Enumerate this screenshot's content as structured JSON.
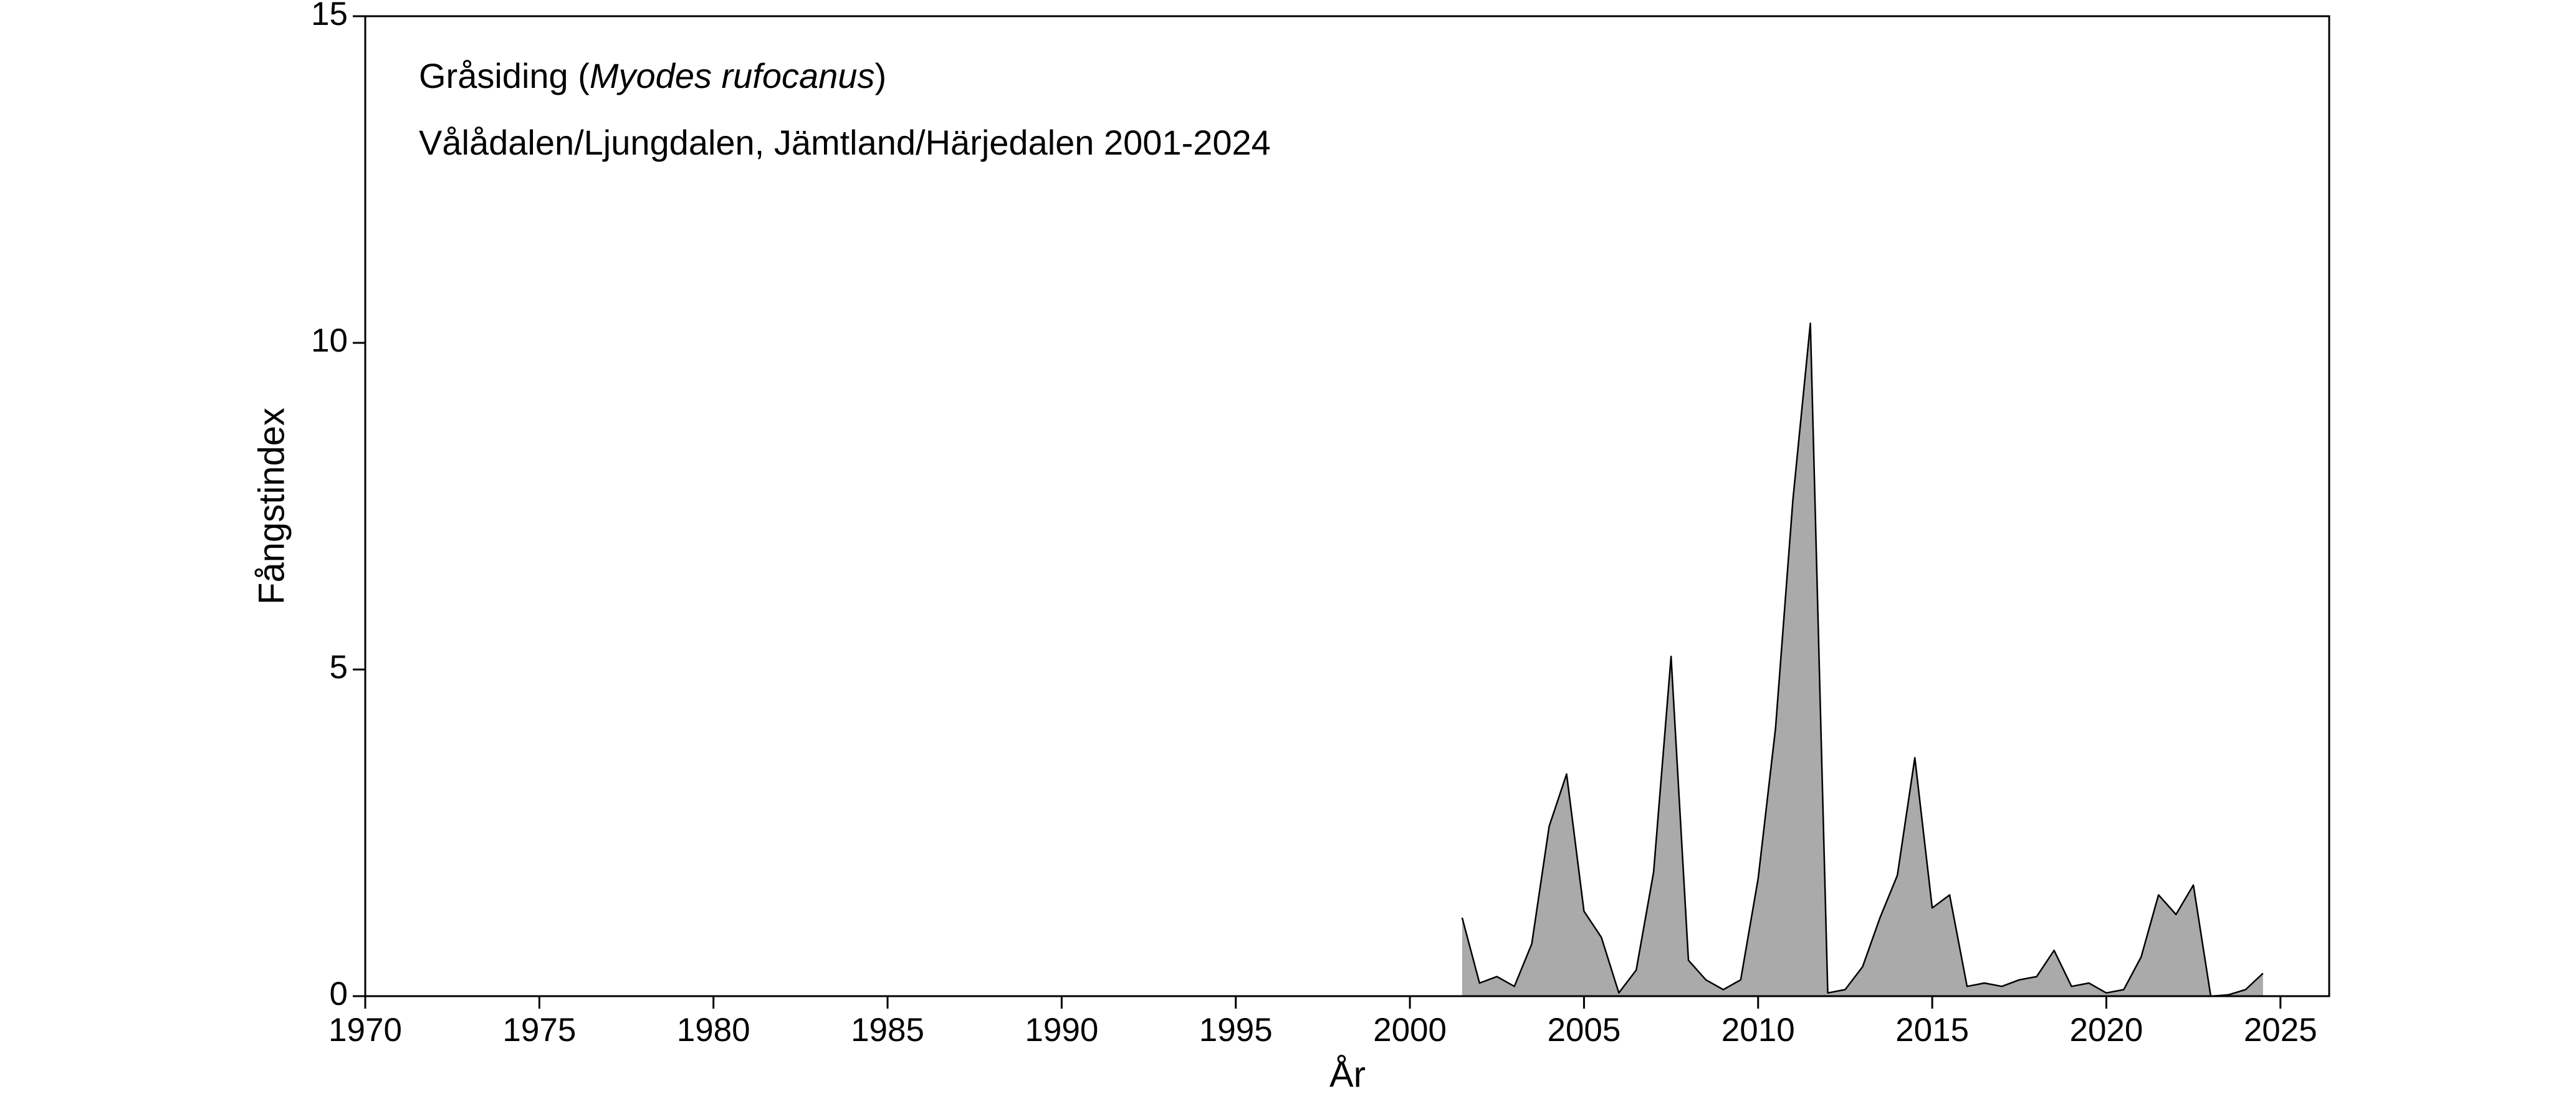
{
  "chart_data": {
    "type": "area",
    "title_parts": [
      "Gråsiding (",
      "Myodes rufocanus",
      ")"
    ],
    "subtitle": "Vålådalen/Ljungdalen, Jämtland/Härjedalen 2001-2024",
    "xlabel": "År",
    "ylabel": "Fångstindex",
    "x": [
      2001.5,
      2002,
      2002.5,
      2003,
      2003.5,
      2004,
      2004.5,
      2005,
      2005.5,
      2006,
      2006.5,
      2007,
      2007.5,
      2008,
      2008.5,
      2009,
      2009.5,
      2010,
      2010.5,
      2011,
      2011.5,
      2012,
      2012.5,
      2013,
      2013.5,
      2014,
      2014.5,
      2015,
      2015.5,
      2016,
      2016.5,
      2017,
      2017.5,
      2018,
      2018.5,
      2019,
      2019.5,
      2020,
      2020.5,
      2021,
      2021.5,
      2022,
      2022.5,
      2023,
      2023.5,
      2024,
      2024.5
    ],
    "values": [
      1.2,
      0.2,
      0.3,
      0.15,
      0.8,
      2.6,
      3.4,
      1.3,
      0.9,
      0.05,
      0.4,
      1.9,
      5.2,
      0.55,
      0.25,
      0.1,
      0.25,
      1.8,
      4.1,
      7.6,
      10.3,
      0.05,
      0.1,
      0.45,
      1.2,
      1.85,
      3.65,
      1.35,
      1.55,
      0.15,
      0.2,
      0.15,
      0.25,
      0.3,
      0.7,
      0.15,
      0.2,
      0.05,
      0.1,
      0.6,
      1.55,
      1.25,
      1.7,
      0,
      0.02,
      0.1,
      0.35
    ],
    "color": "#aaaaaa",
    "xlim": [
      1970,
      2026.4
    ],
    "ylim": [
      0,
      15
    ],
    "xticks": [
      1970,
      1975,
      1980,
      1985,
      1990,
      1995,
      2000,
      2005,
      2010,
      2015,
      2020,
      2025
    ],
    "yticks": [
      0,
      5,
      10,
      15
    ]
  }
}
